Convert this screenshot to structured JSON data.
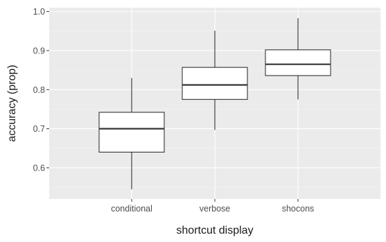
{
  "chart_data": {
    "type": "box",
    "title": "",
    "xlabel": "shortcut display",
    "ylabel": "accuracy (prop)",
    "ylim": [
      0.52,
      1.01
    ],
    "yticks": [
      0.6,
      0.7,
      0.8,
      0.9,
      1.0
    ],
    "ytick_labels": [
      "0.6",
      "0.7",
      "0.8",
      "0.9",
      "1.0"
    ],
    "grid": true,
    "legend": "none",
    "categories": [
      "conditional",
      "verbose",
      "shocons"
    ],
    "boxes": [
      {
        "category": "conditional",
        "whisker_low": 0.545,
        "q1": 0.64,
        "median": 0.7,
        "q3": 0.742,
        "whisker_high": 0.83
      },
      {
        "category": "verbose",
        "whisker_low": 0.697,
        "q1": 0.775,
        "median": 0.812,
        "q3": 0.857,
        "whisker_high": 0.951
      },
      {
        "category": "shocons",
        "whisker_low": 0.775,
        "q1": 0.836,
        "median": 0.865,
        "q3": 0.902,
        "whisker_high": 0.983
      }
    ],
    "colors": {
      "panel_background": "#ebebeb",
      "grid_major": "#ffffff",
      "grid_minor": "#f5f5f5",
      "box_fill": "#ffffff",
      "box_stroke": "#333333",
      "whisker": "#333333",
      "median": "#333333",
      "tick_label": "#4d4d4d",
      "axis_title": "#1a1a1a"
    }
  }
}
